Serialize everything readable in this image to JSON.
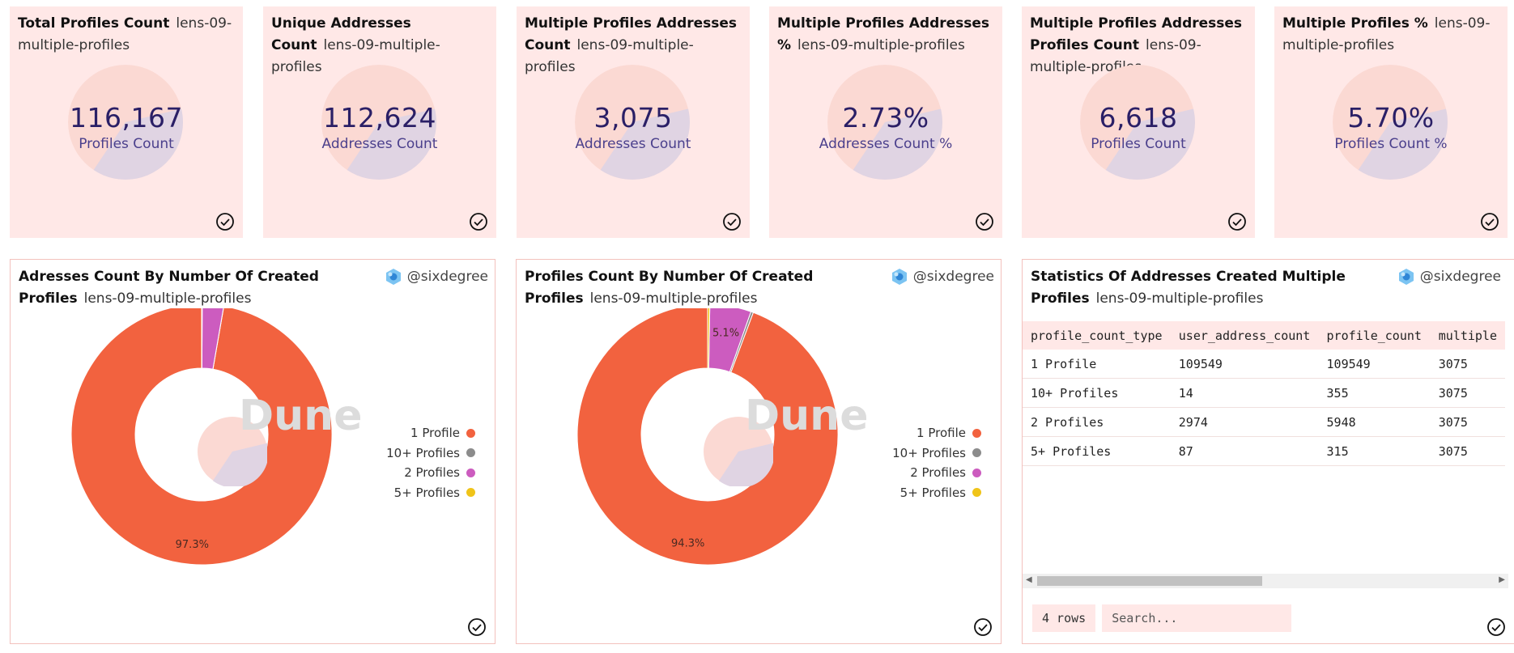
{
  "counters": [
    {
      "title": "Total Profiles Count",
      "query": "lens-09-multiple-profiles",
      "value": "116,167",
      "label": "Profiles Count"
    },
    {
      "title": "Unique Addresses Count",
      "query": "lens-09-multiple-profiles",
      "value": "112,624",
      "label": "Addresses Count"
    },
    {
      "title": "Multiple Profiles Addresses Count",
      "query": "lens-09-multiple-profiles",
      "value": "3,075",
      "label": "Addresses Count"
    },
    {
      "title": "Multiple Profiles Addresses %",
      "query": "lens-09-multiple-profiles",
      "value": "2.73%",
      "label": "Addresses Count %"
    },
    {
      "title": "Multiple Profiles Addresses Profiles Count",
      "query": "lens-09-multiple-profiles",
      "value": "6,618",
      "label": "Profiles Count"
    },
    {
      "title": "Multiple Profiles %",
      "query": "lens-09-multiple-profiles",
      "value": "5.70%",
      "label": "Profiles Count %"
    }
  ],
  "panels": [
    {
      "title": "Adresses Count By Number Of Created Profiles",
      "query": "lens-09-multiple-profiles",
      "owner": "@sixdegree"
    },
    {
      "title": "Profiles Count By Number Of Created Profiles",
      "query": "lens-09-multiple-profiles",
      "owner": "@sixdegree"
    },
    {
      "title": "Statistics Of Addresses Created Multiple Profiles",
      "query": "lens-09-multiple-profiles",
      "owner": "@sixdegree"
    }
  ],
  "watermark": "Dune",
  "colors": {
    "card_bg": "#ffe8e7",
    "orange": "#f2623f",
    "gray": "#8c8c8c",
    "magenta": "#cc5cbf",
    "yellow": "#f0c419",
    "value_text": "#2a1f66"
  },
  "chart_data": [
    {
      "type": "pie",
      "categories": [
        "1 Profile",
        "10+ Profiles",
        "2 Profiles",
        "5+ Profiles"
      ],
      "values": [
        109549,
        14,
        2974,
        87
      ],
      "data_labels": [
        "97.3%",
        "",
        "",
        ""
      ],
      "legend_position": "right"
    },
    {
      "type": "pie",
      "categories": [
        "1 Profile",
        "10+ Profiles",
        "2 Profiles",
        "5+ Profiles"
      ],
      "values": [
        109549,
        355,
        5948,
        315
      ],
      "data_labels": [
        "94.3%",
        "",
        "5.1%",
        ""
      ],
      "legend_position": "right"
    }
  ],
  "table": {
    "columns": [
      "profile_count_type",
      "user_address_count",
      "profile_count",
      "multiple"
    ],
    "rows": [
      [
        "1 Profile",
        "109549",
        "109549",
        "3075"
      ],
      [
        "10+ Profiles",
        "14",
        "355",
        "3075"
      ],
      [
        "2 Profiles",
        "2974",
        "5948",
        "3075"
      ],
      [
        "5+ Profiles",
        "87",
        "315",
        "3075"
      ]
    ],
    "row_count": "4 rows",
    "search_placeholder": "Search..."
  }
}
